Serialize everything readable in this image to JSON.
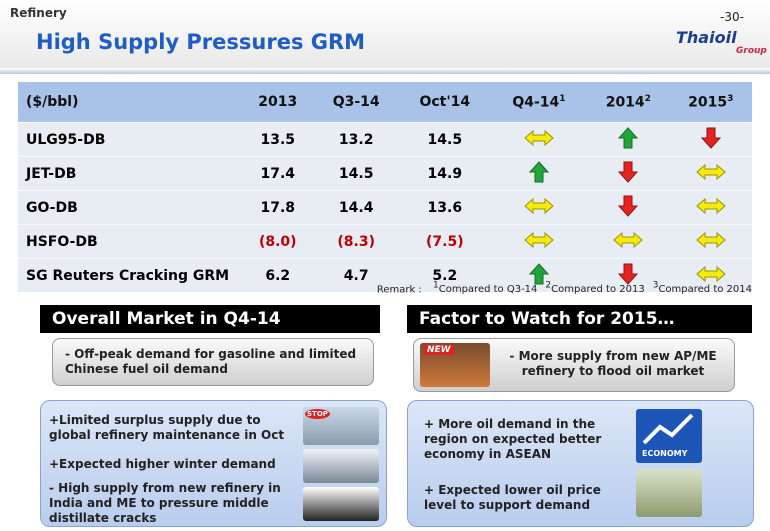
{
  "header": {
    "section": "Refinery",
    "title": "High Supply Pressures GRM",
    "page": "-30-",
    "logo": "Thaioil",
    "logo_sub": "Group"
  },
  "table": {
    "columns": [
      "($/bbl)",
      "2013",
      "Q3-14",
      "Oct'14",
      "Q4-14",
      "2014",
      "2015"
    ],
    "footnote_marks": [
      "1",
      "2",
      "3"
    ],
    "rows": [
      [
        "ULG95-DB",
        "13.5",
        "13.2",
        "14.5"
      ],
      [
        "JET-DB",
        "17.4",
        "14.5",
        "14.9"
      ],
      [
        "GO-DB",
        "17.8",
        "14.4",
        "13.6"
      ],
      [
        "HSFO-DB",
        "(8.0)",
        "(8.3)",
        "(7.5)"
      ],
      [
        "SG Reuters Cracking GRM",
        "6.2",
        "4.7",
        "5.2"
      ]
    ]
  },
  "remark": {
    "label": "Remark :",
    "notes": [
      {
        "mark": "1",
        "text": "Compared to Q3-14"
      },
      {
        "mark": "2",
        "text": "Compared to 2013"
      },
      {
        "mark": "3",
        "text": "Compared to 2014"
      }
    ]
  },
  "left": {
    "title": "Overall Market in Q4-14",
    "summary": "- Off-peak demand for gasoline and limited Chinese fuel oil demand",
    "items": [
      "+Limited surplus supply due to global refinery maintenance in Oct",
      "+Expected higher winter demand",
      "- High supply from new refinery in India and ME to pressure middle distillate cracks"
    ],
    "image_label": "STOP"
  },
  "right": {
    "title": "Factor to Watch for 2015…",
    "summary": "- More supply from new AP/ME refinery to flood oil market",
    "items": [
      "+ More oil demand in the region on expected better economy in ASEAN",
      "+ Expected lower oil price level to support demand"
    ],
    "badges": [
      "NEW",
      "ECONOMY"
    ]
  }
}
